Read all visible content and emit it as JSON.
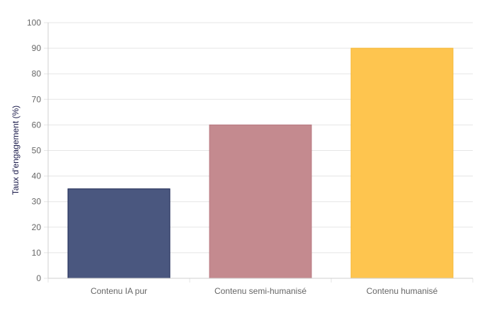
{
  "chart_data": {
    "type": "bar",
    "title": "",
    "xlabel": "",
    "ylabel": "Taux d'engagement (%)",
    "ylim": [
      0,
      100
    ],
    "yticks": [
      0,
      10,
      20,
      30,
      40,
      50,
      60,
      70,
      80,
      90,
      100
    ],
    "categories": [
      "Contenu IA pur",
      "Contenu semi-humanisé",
      "Contenu humanisé"
    ],
    "values": [
      35,
      60,
      90
    ],
    "bar_colors": [
      "#4a577f",
      "#c48a8f",
      "#fec54f"
    ],
    "bar_border_colors": [
      "#1e2a55",
      "#b87880",
      "#f5b731"
    ],
    "grid": true,
    "legend": "none"
  }
}
